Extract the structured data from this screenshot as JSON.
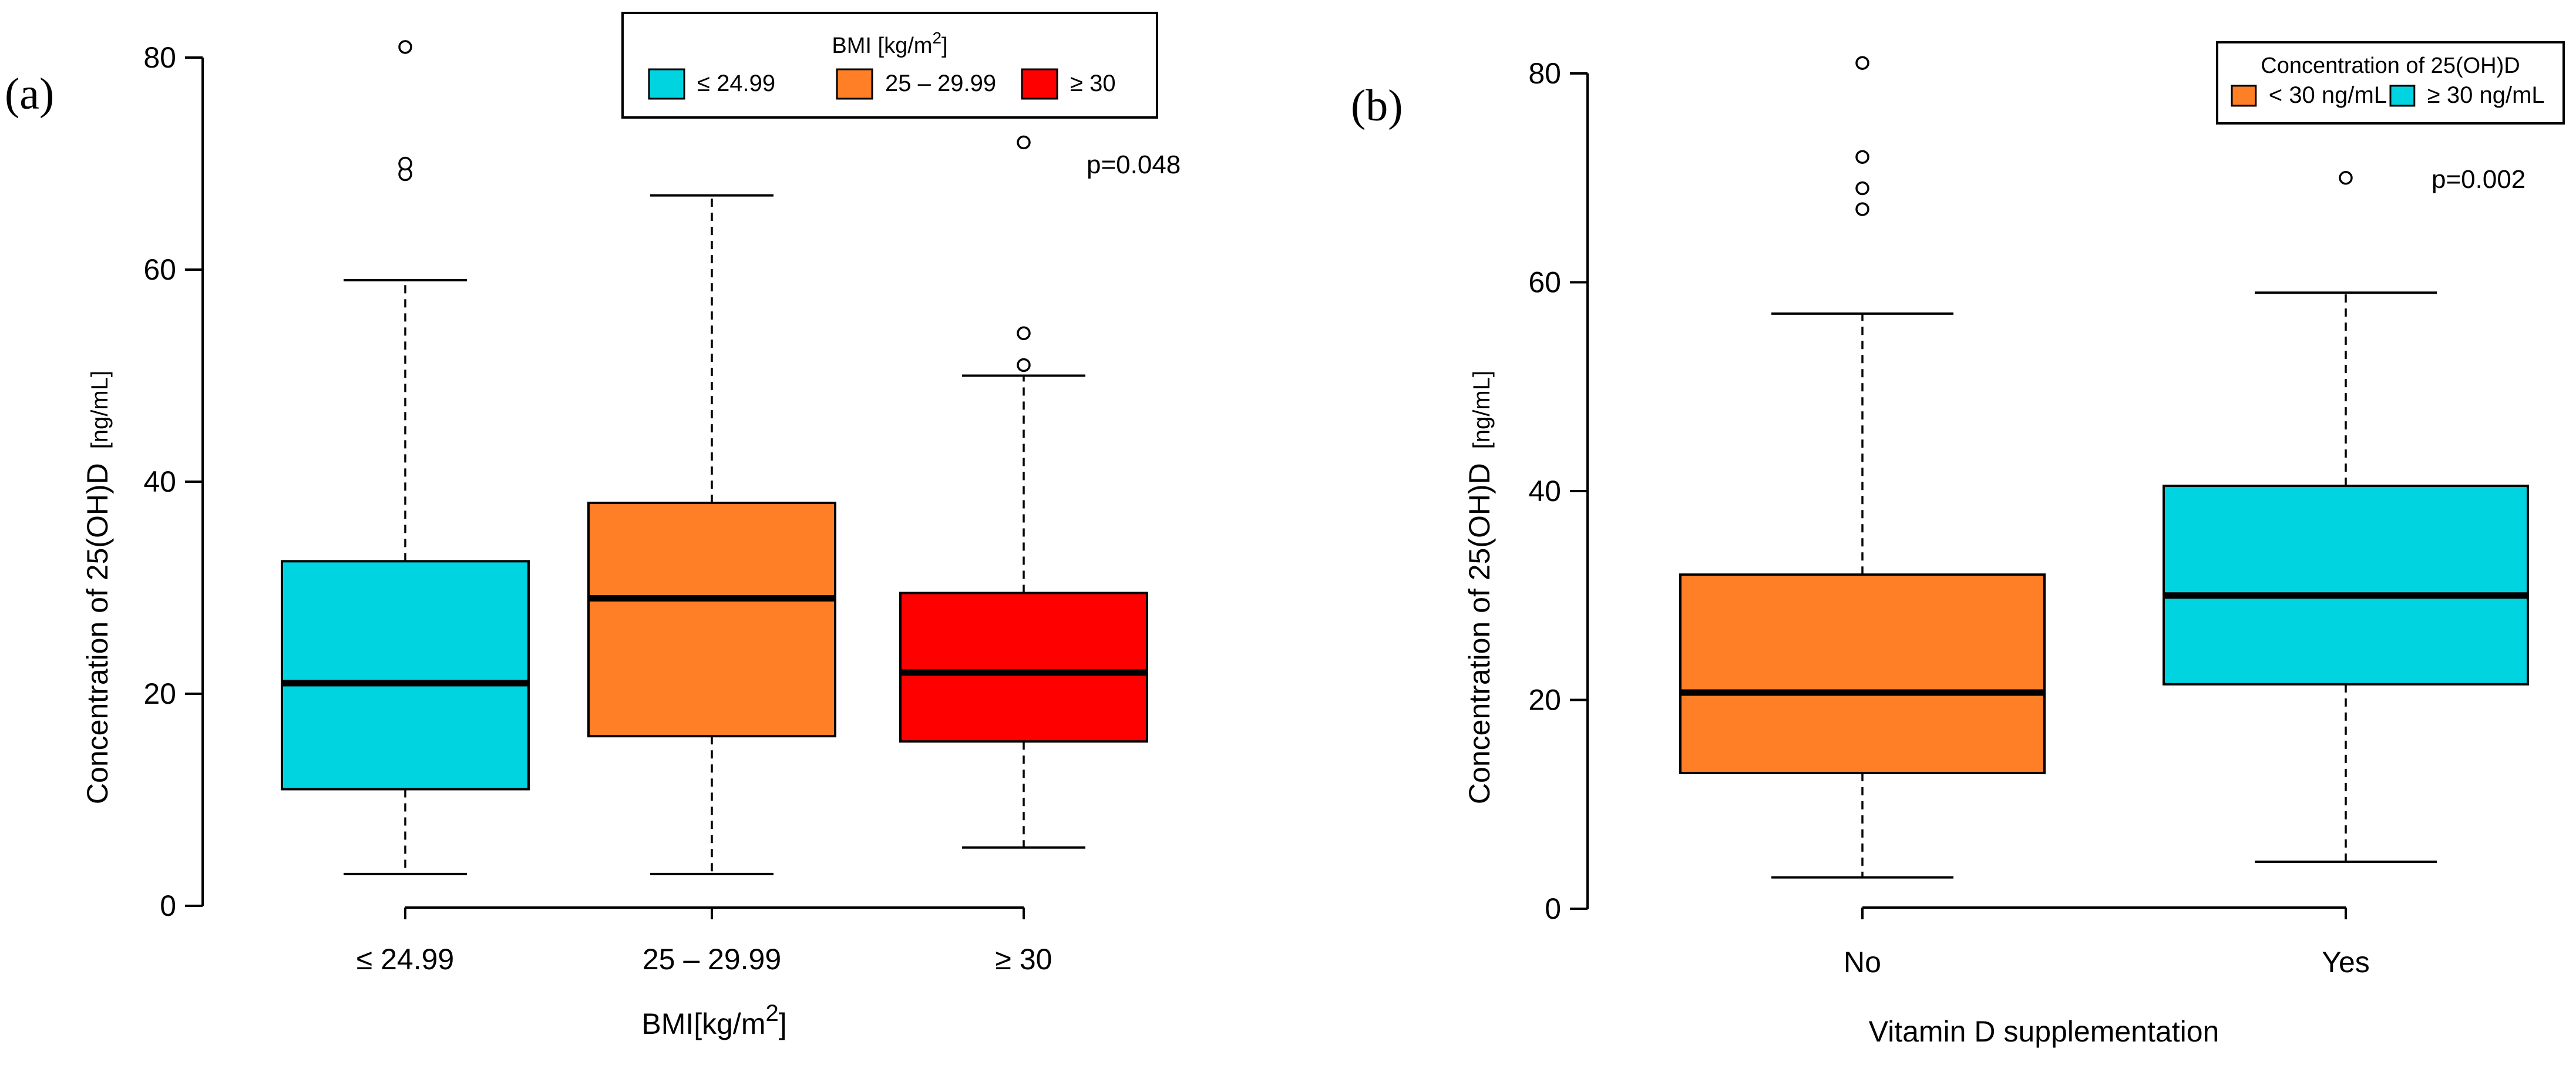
{
  "chart_data": [
    {
      "type": "box",
      "panel_label": "(a)",
      "ylabel": "Concentration of 25(OH)D",
      "ylabel_unit": "[ng/mL]",
      "xlabel": "BMI[kg/m",
      "xlabel_sup": "2",
      "xlabel_end": "]",
      "ylim": [
        0,
        80
      ],
      "yticks": [
        "0",
        "20",
        "40",
        "60",
        "80"
      ],
      "ytick_values": [
        0,
        20,
        40,
        60,
        80
      ],
      "p_value": "p=0.048",
      "legend": {
        "title_text": "BMI [kg/m",
        "title_sup": "2",
        "title_end": "]",
        "position": "top-center",
        "entries": [
          {
            "label": "≤ 24.99",
            "color": "#00D4E0"
          },
          {
            "label": "25 – 29.99",
            "color": "#FF7F27"
          },
          {
            "label": "≥ 30",
            "color": "#FF0000"
          }
        ]
      },
      "boxes": [
        {
          "label": "≤ 24.99",
          "color": "#00D4E0",
          "whisker_low": 3,
          "q1": 11,
          "median": 21,
          "q3": 32.5,
          "whisker_high": 59,
          "outliers": [
            69,
            70,
            81
          ]
        },
        {
          "label": "25 – 29.99",
          "color": "#FF7F27",
          "whisker_low": 3,
          "q1": 16,
          "median": 29,
          "q3": 38,
          "whisker_high": 67,
          "outliers": []
        },
        {
          "label": "≥ 30",
          "color": "#FF0000",
          "whisker_low": 5.5,
          "q1": 15.5,
          "median": 22,
          "q3": 29.5,
          "whisker_high": 50,
          "outliers": [
            51,
            54,
            72
          ]
        }
      ]
    },
    {
      "type": "box",
      "panel_label": "(b)",
      "ylabel": "Concentration of 25(OH)D",
      "ylabel_unit": "[ng/mL]",
      "xlabel": "Vitamin D supplementation",
      "ylim": [
        0,
        80
      ],
      "yticks": [
        "0",
        "20",
        "40",
        "60",
        "80"
      ],
      "ytick_values": [
        0,
        20,
        40,
        60,
        80
      ],
      "p_value": "p=0.002",
      "legend": {
        "title_text": "Concentration of 25(OH)D",
        "position": "top-right",
        "entries": [
          {
            "label": "< 30 ng/mL",
            "color": "#FF7F27"
          },
          {
            "label": "≥ 30 ng/mL",
            "color": "#00D4E0"
          }
        ]
      },
      "boxes": [
        {
          "label": "No",
          "color": "#FF7F27",
          "whisker_low": 3,
          "q1": 13,
          "median": 20.7,
          "q3": 32,
          "whisker_high": 57,
          "outliers": [
            67,
            69,
            72,
            81
          ]
        },
        {
          "label": "Yes",
          "color": "#00D4E0",
          "whisker_low": 4.5,
          "q1": 21.5,
          "median": 30,
          "q3": 40.5,
          "whisker_high": 59,
          "outliers": [
            70
          ]
        }
      ]
    }
  ]
}
